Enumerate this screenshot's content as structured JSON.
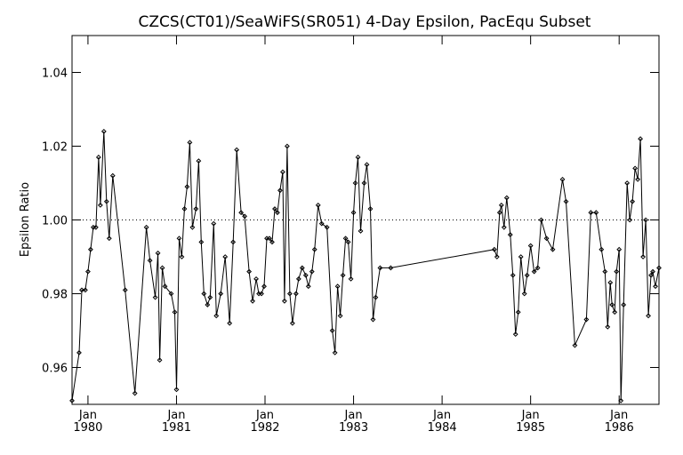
{
  "chart_data": {
    "type": "line",
    "title": "CZCS(CT01)/SeaWiFS(SR051) 4-Day Epsilon, PacEqu Subset",
    "xlabel": "",
    "ylabel": "Epsilon Ratio",
    "xlim": [
      1979.82,
      1986.45
    ],
    "ylim": [
      0.95,
      1.05
    ],
    "x_ticks": [
      {
        "value": 1980.0,
        "line1": "Jan",
        "line2": "1980"
      },
      {
        "value": 1981.0,
        "line1": "Jan",
        "line2": "1981"
      },
      {
        "value": 1982.0,
        "line1": "Jan",
        "line2": "1982"
      },
      {
        "value": 1983.0,
        "line1": "Jan",
        "line2": "1983"
      },
      {
        "value": 1984.0,
        "line1": "Jan",
        "line2": "1984"
      },
      {
        "value": 1985.0,
        "line1": "Jan",
        "line2": "1985"
      },
      {
        "value": 1986.0,
        "line1": "Jan",
        "line2": "1986"
      }
    ],
    "y_ticks": [
      {
        "value": 0.96,
        "label": "0.96"
      },
      {
        "value": 0.98,
        "label": "0.98"
      },
      {
        "value": 1.0,
        "label": "1.00"
      },
      {
        "value": 1.02,
        "label": "1.02"
      },
      {
        "value": 1.04,
        "label": "1.04"
      }
    ],
    "reference_line": {
      "y": 1.0,
      "style": "dotted"
    },
    "marker": "diamond",
    "line_color": "#000000",
    "series": [
      {
        "x": [
          1979.82,
          1979.9,
          1979.93,
          1979.97,
          1980.0,
          1980.03,
          1980.06,
          1980.09,
          1980.12,
          1980.14,
          1980.18,
          1980.21,
          1980.24,
          1980.28,
          1980.42,
          1980.53,
          1980.66,
          1980.7,
          1980.76,
          1980.79,
          1980.81,
          1980.84,
          1980.87,
          1980.94,
          1980.98,
          1981.0,
          1981.03,
          1981.06,
          1981.09,
          1981.12,
          1981.15,
          1981.18,
          1981.22,
          1981.25,
          1981.28,
          1981.31,
          1981.35,
          1981.38,
          1981.42,
          1981.45,
          1981.5,
          1981.55,
          1981.6,
          1981.64,
          1981.68,
          1981.73,
          1981.77,
          1981.82,
          1981.86,
          1981.9,
          1981.93,
          1981.96,
          1981.99,
          1982.02,
          1982.05,
          1982.08,
          1982.11,
          1982.14,
          1982.17,
          1982.2,
          1982.22,
          1982.25,
          1982.28,
          1982.31,
          1982.35,
          1982.38,
          1982.42,
          1982.46,
          1982.49,
          1982.53,
          1982.56,
          1982.6,
          1982.64,
          1982.7,
          1982.76,
          1982.79,
          1982.82,
          1982.85,
          1982.88,
          1982.91,
          1982.94,
          1982.97,
          1983.0,
          1983.02,
          1983.05,
          1983.08,
          1983.12,
          1983.15,
          1983.19,
          1983.22,
          1983.25,
          1983.3,
          1983.42,
          1984.59,
          1984.62,
          1984.65,
          1984.67,
          1984.7,
          1984.73,
          1984.77,
          1984.8,
          1984.83,
          1984.86,
          1984.89,
          1984.93,
          1984.96,
          1985.0,
          1985.04,
          1985.08,
          1985.12,
          1985.18,
          1985.25,
          1985.36,
          1985.4,
          1985.5,
          1985.63,
          1985.68,
          1985.74,
          1985.8,
          1985.84,
          1985.87,
          1985.9,
          1985.92,
          1985.95,
          1985.97,
          1986.0,
          1986.02,
          1986.05,
          1986.09,
          1986.12,
          1986.15,
          1986.18,
          1986.21,
          1986.24,
          1986.27,
          1986.3,
          1986.33,
          1986.36,
          1986.38,
          1986.41,
          1986.45
        ],
        "y": [
          0.951,
          0.964,
          0.981,
          0.981,
          0.986,
          0.992,
          0.998,
          0.998,
          1.017,
          1.004,
          1.024,
          1.005,
          0.995,
          1.012,
          0.981,
          0.953,
          0.998,
          0.989,
          0.979,
          0.991,
          0.962,
          0.987,
          0.982,
          0.98,
          0.975,
          0.954,
          0.995,
          0.99,
          1.003,
          1.009,
          1.021,
          0.998,
          1.003,
          1.016,
          0.994,
          0.98,
          0.977,
          0.979,
          0.999,
          0.974,
          0.98,
          0.99,
          0.972,
          0.994,
          1.019,
          1.002,
          1.001,
          0.986,
          0.978,
          0.984,
          0.98,
          0.98,
          0.982,
          0.995,
          0.995,
          0.994,
          1.003,
          1.002,
          1.008,
          1.013,
          0.978,
          1.02,
          0.98,
          0.972,
          0.98,
          0.984,
          0.987,
          0.985,
          0.982,
          0.986,
          0.992,
          1.004,
          0.999,
          0.998,
          0.97,
          0.964,
          0.982,
          0.974,
          0.985,
          0.995,
          0.994,
          0.984,
          1.002,
          1.01,
          1.017,
          0.997,
          1.01,
          1.015,
          1.003,
          0.973,
          0.979,
          0.987,
          0.987,
          0.992,
          0.99,
          1.002,
          1.004,
          0.998,
          1.006,
          0.996,
          0.985,
          0.969,
          0.975,
          0.99,
          0.98,
          0.985,
          0.993,
          0.986,
          0.987,
          1.0,
          0.995,
          0.992,
          1.011,
          1.005,
          0.966,
          0.973,
          1.002,
          1.002,
          0.992,
          0.986,
          0.971,
          0.983,
          0.977,
          0.975,
          0.986,
          0.992,
          0.951,
          0.977,
          1.01,
          1.0,
          1.005,
          1.014,
          1.011,
          1.022,
          0.99,
          1.0,
          0.974,
          0.985,
          0.986,
          0.982,
          0.987
        ]
      }
    ]
  }
}
